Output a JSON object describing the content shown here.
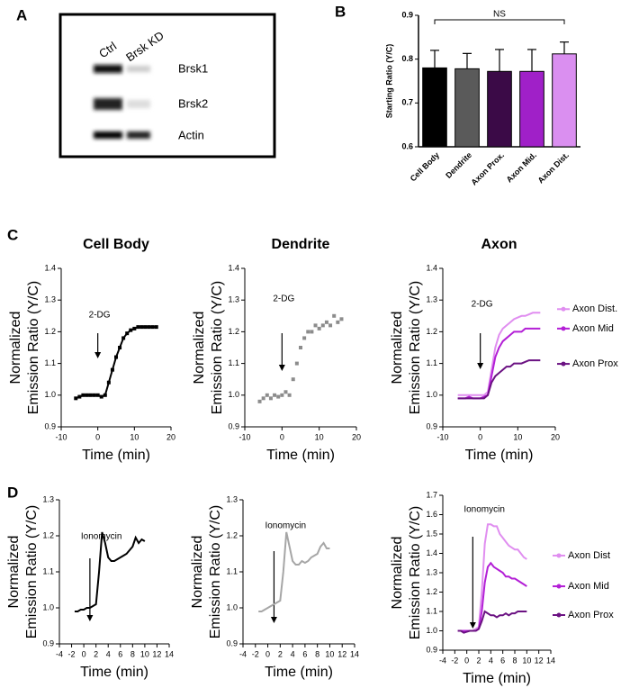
{
  "panel_labels": [
    "A",
    "B",
    "C",
    "D"
  ],
  "panel_a": {
    "lanes": [
      "Ctrl",
      "Brsk KD"
    ],
    "bands": [
      "Brsk1",
      "Brsk2",
      "Actin"
    ]
  },
  "chart_data": [
    {
      "type": "bar",
      "ylabel": "Starting Ratio (Y/C)",
      "categories": [
        "Cell Body",
        "Dendrite",
        "Axon Prox.",
        "Axon Mid.",
        "Axon Dist."
      ],
      "values": [
        0.78,
        0.778,
        0.772,
        0.772,
        0.812
      ],
      "errors": [
        0.04,
        0.035,
        0.05,
        0.05,
        0.027
      ],
      "colors": [
        "#000000",
        "#5a5a5a",
        "#3b0a47",
        "#a020c8",
        "#da8ff0"
      ],
      "annotation": "NS",
      "ylim": [
        0.6,
        0.9
      ],
      "yticks": [
        0.6,
        0.7,
        0.8,
        0.9
      ]
    },
    {
      "type": "line",
      "title": "Cell Body",
      "ylabel": [
        "Normalized",
        "Emission Ratio (Y/C)"
      ],
      "xlabel": "Time (min)",
      "annotation": {
        "text": "2-DG",
        "x": 0
      },
      "x": [
        -6,
        -5,
        -4,
        -3,
        -2,
        -1,
        0,
        1,
        2,
        3,
        4,
        5,
        6,
        7,
        8,
        9,
        10,
        11,
        12,
        13,
        14,
        15,
        16
      ],
      "series": [
        {
          "color": "#000000",
          "marker": true,
          "values": [
            0.99,
            0.995,
            1.0,
            1.0,
            1.0,
            1.0,
            1.0,
            0.995,
            1.0,
            1.04,
            1.08,
            1.12,
            1.15,
            1.18,
            1.195,
            1.205,
            1.21,
            1.215,
            1.215,
            1.215,
            1.215,
            1.215,
            1.215
          ]
        }
      ],
      "xlim": [
        -10,
        20
      ],
      "xticks": [
        -10,
        0,
        10,
        20
      ],
      "ylim": [
        0.9,
        1.4
      ],
      "yticks": [
        0.9,
        {
          "value": 1,
          "label": "1.0"
        },
        1.1,
        1.2,
        1.3,
        1.4
      ]
    },
    {
      "type": "line",
      "title": "Dendrite",
      "ylabel": [
        "Normalized",
        "Emission Ratio (Y/C)"
      ],
      "xlabel": "Time (min)",
      "annotation": {
        "text": "2-DG",
        "x": 0
      },
      "x": [
        -6,
        -5,
        -4,
        -3,
        -2,
        -1,
        0,
        1,
        2,
        3,
        4,
        5,
        6,
        7,
        8,
        9,
        10,
        11,
        12,
        13,
        14,
        15,
        16
      ],
      "series": [
        {
          "color": "#8c8c8c",
          "marker": true,
          "noline": true,
          "values": [
            0.98,
            0.99,
            1.0,
            0.99,
            1.0,
            0.995,
            1.0,
            1.01,
            1.0,
            1.05,
            1.1,
            1.15,
            1.18,
            1.2,
            1.2,
            1.22,
            1.21,
            1.22,
            1.23,
            1.22,
            1.25,
            1.23,
            1.24
          ]
        }
      ],
      "xlim": [
        -10,
        20
      ],
      "xticks": [
        -10,
        0,
        10,
        20
      ],
      "ylim": [
        0.9,
        1.4
      ],
      "yticks": [
        0.9,
        {
          "value": 1,
          "label": "1.0"
        },
        1.1,
        1.2,
        1.3,
        1.4
      ]
    },
    {
      "type": "line",
      "title": "Axon",
      "ylabel": [
        "Normalized",
        "Emission Ratio (Y/C)"
      ],
      "xlabel": "Time (min)",
      "annotation": {
        "text": "2-DG",
        "x": 0
      },
      "x": [
        -6,
        -5,
        -4,
        -3,
        -2,
        -1,
        0,
        1,
        2,
        3,
        4,
        5,
        6,
        7,
        8,
        9,
        10,
        11,
        12,
        13,
        14,
        15,
        16
      ],
      "series": [
        {
          "name": "Axon Dist.",
          "color": "#e08ef0",
          "values": [
            1.0,
            1.0,
            1.0,
            1.0,
            1.0,
            1.0,
            1.0,
            1.0,
            1.01,
            1.08,
            1.15,
            1.19,
            1.21,
            1.22,
            1.23,
            1.24,
            1.245,
            1.25,
            1.25,
            1.255,
            1.26,
            1.26,
            1.26
          ]
        },
        {
          "name": "Axon Mid",
          "color": "#b31fd6",
          "values": [
            0.99,
            0.99,
            0.99,
            0.995,
            0.99,
            0.99,
            0.99,
            0.995,
            1.0,
            1.06,
            1.12,
            1.15,
            1.17,
            1.18,
            1.19,
            1.2,
            1.2,
            1.2,
            1.21,
            1.21,
            1.21,
            1.21,
            1.21
          ]
        },
        {
          "name": "Axon Prox",
          "color": "#6b1282",
          "values": [
            0.99,
            0.99,
            0.99,
            0.99,
            0.99,
            0.99,
            0.99,
            0.99,
            1.0,
            1.04,
            1.06,
            1.07,
            1.08,
            1.09,
            1.09,
            1.1,
            1.1,
            1.1,
            1.105,
            1.11,
            1.11,
            1.11,
            1.11
          ]
        }
      ],
      "xlim": [
        -10,
        20
      ],
      "xticks": [
        -10,
        0,
        10,
        20
      ],
      "ylim": [
        0.9,
        1.4
      ],
      "yticks": [
        0.9,
        {
          "value": 1,
          "label": "1.0"
        },
        1.1,
        1.2,
        1.3,
        1.4
      ]
    },
    {
      "type": "line",
      "ylabel": [
        "Normalized",
        "Emission Ratio (Y/C)"
      ],
      "xlabel": "Time (min)",
      "annotation": {
        "text": "Ionomycin",
        "x": 1
      },
      "x": [
        -1.5,
        -1,
        -0.5,
        0,
        0.5,
        1,
        1.5,
        2,
        2.5,
        3,
        3.5,
        4,
        4.5,
        5,
        5.5,
        6,
        6.5,
        7,
        7.5,
        8,
        8.5,
        9,
        9.5,
        10
      ],
      "series": [
        {
          "color": "#000000",
          "values": [
            0.99,
            0.99,
            0.995,
            0.995,
            1.0,
            1.0,
            1.005,
            1.01,
            1.1,
            1.21,
            1.18,
            1.14,
            1.13,
            1.13,
            1.135,
            1.14,
            1.145,
            1.15,
            1.16,
            1.17,
            1.195,
            1.18,
            1.19,
            1.185
          ]
        }
      ],
      "xlim": [
        -4,
        14
      ],
      "xticks": [
        -4,
        -2,
        0,
        2,
        4,
        6,
        8,
        10,
        12,
        14
      ],
      "ylim": [
        0.9,
        1.3
      ],
      "yticks": [
        0.9,
        {
          "value": 1,
          "label": "1.0"
        },
        1.1,
        1.2,
        1.3
      ]
    },
    {
      "type": "line",
      "ylabel": [
        "Normalized",
        "Emission Ratio (Y/C)"
      ],
      "xlabel": "Time (min)",
      "annotation": {
        "text": "Ionomycin",
        "x": 1
      },
      "x": [
        -1.5,
        -1,
        -0.5,
        0,
        0.5,
        1,
        1.5,
        2,
        2.5,
        3,
        3.5,
        4,
        4.5,
        5,
        5.5,
        6,
        6.5,
        7,
        7.5,
        8,
        8.5,
        9,
        9.5,
        10
      ],
      "series": [
        {
          "color": "#a6a6a6",
          "values": [
            0.99,
            0.99,
            0.995,
            1.0,
            1.005,
            1.01,
            1.015,
            1.02,
            1.1,
            1.21,
            1.17,
            1.13,
            1.12,
            1.12,
            1.13,
            1.125,
            1.13,
            1.14,
            1.145,
            1.15,
            1.17,
            1.18,
            1.165,
            1.165
          ]
        }
      ],
      "xlim": [
        -4,
        14
      ],
      "xticks": [
        -4,
        -2,
        0,
        2,
        4,
        6,
        8,
        10,
        12,
        14
      ],
      "ylim": [
        0.9,
        1.3
      ],
      "yticks": [
        0.9,
        {
          "value": 1,
          "label": "1.0"
        },
        1.1,
        1.2,
        1.3
      ]
    },
    {
      "type": "line",
      "ylabel": [
        "Normalized",
        "Emission Ratio (Y/C)"
      ],
      "xlabel": "Time (min)",
      "annotation": {
        "text": "Ionomycin",
        "x": 1
      },
      "x": [
        -1.5,
        -1,
        -0.5,
        0,
        0.5,
        1,
        1.5,
        2,
        2.5,
        3,
        3.5,
        4,
        4.5,
        5,
        5.5,
        6,
        6.5,
        7,
        7.5,
        8,
        8.5,
        9,
        9.5,
        10
      ],
      "series": [
        {
          "name": "Axon Dist",
          "color": "#e08ef0",
          "values": [
            1.0,
            1.0,
            1.0,
            1.0,
            1.0,
            1.0,
            1.01,
            1.02,
            1.2,
            1.45,
            1.55,
            1.55,
            1.54,
            1.54,
            1.5,
            1.48,
            1.46,
            1.44,
            1.43,
            1.42,
            1.42,
            1.4,
            1.38,
            1.37
          ]
        },
        {
          "name": "Axon Mid",
          "color": "#b31fd6",
          "values": [
            1.0,
            1.0,
            1.0,
            1.0,
            1.0,
            1.0,
            1.0,
            1.01,
            1.1,
            1.25,
            1.33,
            1.35,
            1.33,
            1.32,
            1.31,
            1.3,
            1.28,
            1.28,
            1.27,
            1.27,
            1.26,
            1.25,
            1.24,
            1.23
          ]
        },
        {
          "name": "Axon Prox",
          "color": "#6b1282",
          "values": [
            1.0,
            1.0,
            0.99,
            0.995,
            1.0,
            1.0,
            1.0,
            1.01,
            1.05,
            1.1,
            1.09,
            1.08,
            1.08,
            1.07,
            1.08,
            1.08,
            1.09,
            1.08,
            1.09,
            1.09,
            1.1,
            1.1,
            1.1,
            1.1
          ]
        }
      ],
      "xlim": [
        -4,
        14
      ],
      "xticks": [
        -4,
        -2,
        0,
        2,
        4,
        6,
        8,
        10,
        12,
        14
      ],
      "ylim": [
        0.9,
        1.7
      ],
      "yticks": [
        0.9,
        {
          "value": 1,
          "label": "1.0"
        },
        1.1,
        1.2,
        1.3,
        1.4,
        1.5,
        1.6,
        1.7
      ]
    }
  ]
}
